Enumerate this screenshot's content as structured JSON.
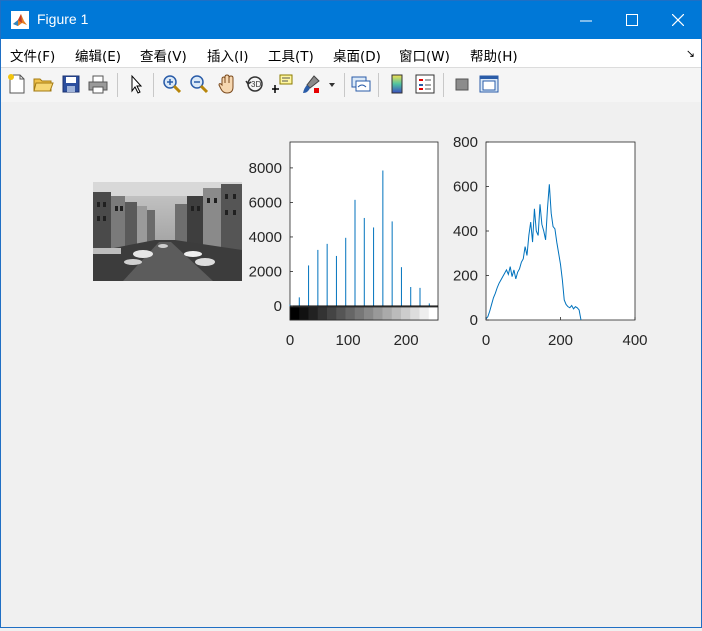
{
  "window": {
    "title": "Figure 1",
    "icons": {
      "app": "matlab-logo-icon",
      "minimize": "minimize-icon",
      "maximize": "maximize-icon",
      "close": "close-icon"
    }
  },
  "menu": {
    "items": [
      "文件(F)",
      "编辑(E)",
      "查看(V)",
      "插入(I)",
      "工具(T)",
      "桌面(D)",
      "窗口(W)",
      "帮助(H)"
    ],
    "overflow_glyph": "↘"
  },
  "toolbar": {
    "buttons": [
      "new-figure-icon",
      "open-file-icon",
      "save-icon",
      "print-icon",
      "pointer-icon",
      "zoom-in-icon",
      "zoom-out-icon",
      "pan-hand-icon",
      "rotate-3d-icon",
      "data-cursor-icon",
      "brush-icon",
      "link-plot-icon",
      "colorbar-icon",
      "legend-icon",
      "hide-plot-tools-icon",
      "show-plot-tools-icon"
    ]
  },
  "chart_data": [
    {
      "type": "image",
      "description": "grayscale photograph"
    },
    {
      "type": "bar",
      "title": "",
      "xlabel": "",
      "ylabel": "",
      "xlim": [
        0,
        255
      ],
      "ylim": [
        0,
        9500
      ],
      "xticks": [
        0,
        100,
        200
      ],
      "yticks": [
        0,
        2000,
        4000,
        6000,
        8000
      ],
      "x": [
        0,
        16,
        32,
        48,
        64,
        80,
        96,
        112,
        128,
        144,
        160,
        176,
        192,
        208,
        224,
        240
      ],
      "values": [
        80,
        500,
        2350,
        3250,
        3600,
        2900,
        3950,
        6150,
        5100,
        4550,
        7850,
        4900,
        2250,
        1100,
        1050,
        150
      ],
      "colorbar": "gray 0-255"
    },
    {
      "type": "line",
      "title": "",
      "xlabel": "",
      "ylabel": "",
      "xlim": [
        0,
        400
      ],
      "ylim": [
        0,
        800
      ],
      "xticks": [
        0,
        200,
        400
      ],
      "yticks": [
        0,
        200,
        400,
        600,
        800
      ],
      "x": [
        0,
        5,
        10,
        15,
        20,
        25,
        30,
        35,
        40,
        45,
        50,
        55,
        60,
        65,
        70,
        75,
        80,
        85,
        90,
        95,
        100,
        105,
        110,
        115,
        120,
        125,
        130,
        135,
        140,
        145,
        150,
        155,
        160,
        165,
        170,
        175,
        180,
        185,
        190,
        195,
        200,
        205,
        210,
        215,
        220,
        225,
        230,
        235,
        240,
        245,
        250,
        255
      ],
      "y": [
        5,
        15,
        40,
        70,
        100,
        120,
        145,
        165,
        180,
        195,
        210,
        225,
        205,
        240,
        195,
        225,
        185,
        215,
        230,
        260,
        275,
        330,
        290,
        380,
        440,
        350,
        500,
        400,
        380,
        520,
        430,
        400,
        360,
        500,
        610,
        480,
        420,
        410,
        350,
        300,
        250,
        180,
        90,
        70,
        60,
        55,
        65,
        50,
        60,
        55,
        45,
        0
      ]
    }
  ]
}
